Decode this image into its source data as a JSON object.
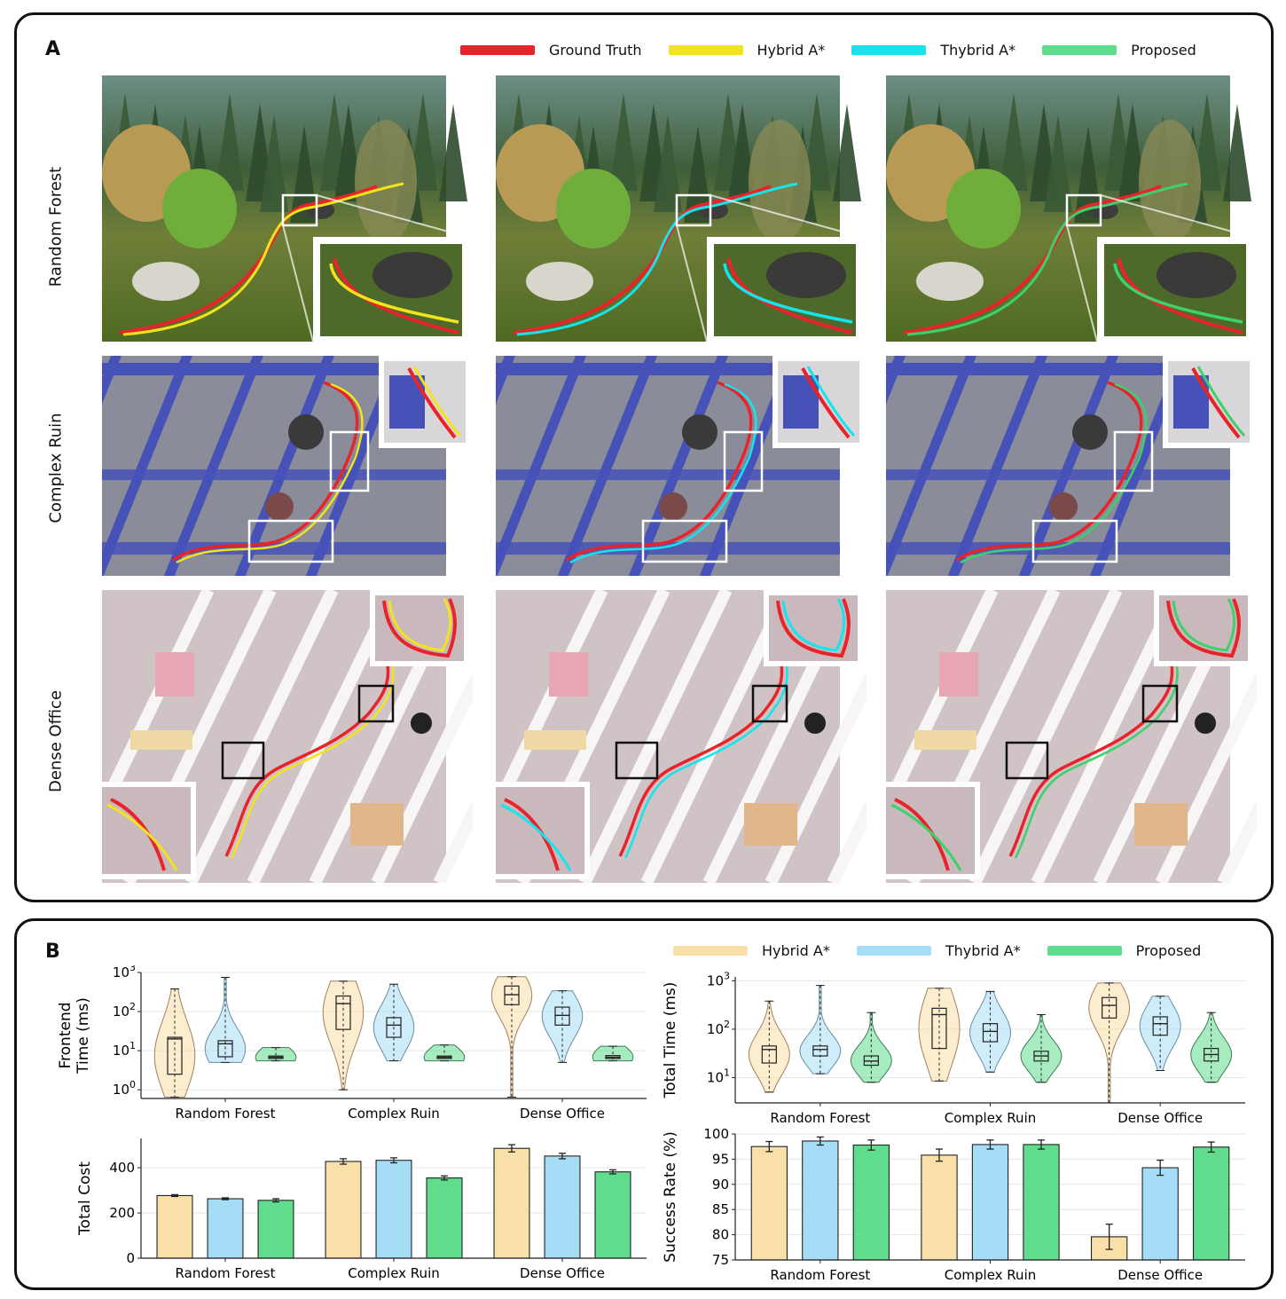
{
  "panel_a": {
    "label": "A",
    "legend": [
      {
        "label": "Ground Truth",
        "color": "#e8232a"
      },
      {
        "label": "Hybrid A*",
        "color": "#f2e41c"
      },
      {
        "label": "Thybrid A*",
        "color": "#16e4ec"
      },
      {
        "label": "Proposed",
        "color": "#5fdc8c"
      }
    ],
    "rows": [
      "Random Forest",
      "Complex Ruin",
      "Dense Office"
    ],
    "method_colors": [
      "#f2e41c",
      "#16e4ec",
      "#3cd16a"
    ]
  },
  "panel_b": {
    "label": "B",
    "legend": [
      {
        "label": "Hybrid A*",
        "color": "#f9dfa8"
      },
      {
        "label": "Thybrid A*",
        "color": "#a6ddf6"
      },
      {
        "label": "Proposed",
        "color": "#5fdc8c"
      }
    ]
  },
  "chart_data": [
    {
      "type": "violin",
      "ylabel": "Frontend\nTime (ms)",
      "yscale": "log",
      "ylim": [
        0.6,
        1000
      ],
      "yticks": [
        "10^0",
        "10^1",
        "10^2",
        "10^3"
      ],
      "categories": [
        "Random Forest",
        "Complex Ruin",
        "Dense Office"
      ],
      "series": [
        {
          "name": "Hybrid A*",
          "color": "#f9dfa8",
          "stroke": "#a08060",
          "stats": [
            {
              "min": 0.65,
              "q1": 2.5,
              "median": 20,
              "q3": 22,
              "max": 380
            },
            {
              "min": 1.0,
              "q1": 35,
              "median": 160,
              "q3": 250,
              "max": 600
            },
            {
              "min": 0.65,
              "q1": 150,
              "median": 270,
              "q3": 450,
              "max": 780
            }
          ]
        },
        {
          "name": "Thybrid A*",
          "color": "#a6ddf6",
          "stroke": "#6a8ea0",
          "stats": [
            {
              "min": 5,
              "q1": 7,
              "median": 15,
              "q3": 18,
              "max": 750
            },
            {
              "min": 5.5,
              "q1": 22,
              "median": 45,
              "q3": 70,
              "max": 500
            },
            {
              "min": 5,
              "q1": 45,
              "median": 80,
              "q3": 130,
              "max": 340
            }
          ]
        },
        {
          "name": "Proposed",
          "color": "#5fdc8c",
          "stroke": "#3f7a55",
          "stats": [
            {
              "min": 5.5,
              "q1": 6.3,
              "median": 6.8,
              "q3": 7.3,
              "max": 12
            },
            {
              "min": 5.5,
              "q1": 6.3,
              "median": 6.8,
              "q3": 7.3,
              "max": 14
            },
            {
              "min": 5.5,
              "q1": 6.3,
              "median": 6.8,
              "q3": 7.5,
              "max": 13
            }
          ]
        }
      ]
    },
    {
      "type": "violin",
      "ylabel": "Total Time (ms)",
      "yscale": "log",
      "ylim": [
        3,
        1200
      ],
      "yticks": [
        "10^1",
        "10^2",
        "10^3"
      ],
      "categories": [
        "Random Forest",
        "Complex Ruin",
        "Dense Office"
      ],
      "series": [
        {
          "name": "Hybrid A*",
          "color": "#f9dfa8",
          "stroke": "#a08060",
          "stats": [
            {
              "min": 5,
              "q1": 20,
              "median": 38,
              "q3": 45,
              "max": 380
            },
            {
              "min": 8.5,
              "q1": 40,
              "median": 200,
              "q3": 270,
              "max": 700
            },
            {
              "min": 3,
              "q1": 170,
              "median": 310,
              "q3": 450,
              "max": 900
            }
          ]
        },
        {
          "name": "Thybrid A*",
          "color": "#a6ddf6",
          "stroke": "#6a8ea0",
          "stats": [
            {
              "min": 12,
              "q1": 28,
              "median": 38,
              "q3": 45,
              "max": 800
            },
            {
              "min": 13,
              "q1": 55,
              "median": 90,
              "q3": 130,
              "max": 600
            },
            {
              "min": 14,
              "q1": 75,
              "median": 130,
              "q3": 180,
              "max": 480
            }
          ]
        },
        {
          "name": "Proposed",
          "color": "#5fdc8c",
          "stroke": "#3f7a55",
          "stats": [
            {
              "min": 8,
              "q1": 18,
              "median": 22,
              "q3": 28,
              "max": 220
            },
            {
              "min": 8,
              "q1": 22,
              "median": 28,
              "q3": 35,
              "max": 200
            },
            {
              "min": 8,
              "q1": 22,
              "median": 30,
              "q3": 40,
              "max": 220
            }
          ]
        }
      ]
    },
    {
      "type": "bar",
      "ylabel": "Total Cost",
      "ylim": [
        0,
        530
      ],
      "yticks": [
        0,
        200,
        400
      ],
      "categories": [
        "Random Forest",
        "Complex Ruin",
        "Dense Office"
      ],
      "series": [
        {
          "name": "Hybrid A*",
          "color": "#f9dfa8",
          "values": [
            277,
            428,
            486
          ],
          "errors": [
            4,
            12,
            16
          ]
        },
        {
          "name": "Thybrid A*",
          "color": "#a6ddf6",
          "values": [
            263,
            433,
            452
          ],
          "errors": [
            4,
            11,
            12
          ]
        },
        {
          "name": "Proposed",
          "color": "#5fdc8c",
          "values": [
            256,
            355,
            382
          ],
          "errors": [
            7,
            9,
            9
          ]
        }
      ]
    },
    {
      "type": "bar",
      "ylabel": "Success Rate (%)",
      "ylim": [
        75,
        100
      ],
      "yticks": [
        75,
        80,
        85,
        90,
        95,
        100
      ],
      "categories": [
        "Random Forest",
        "Complex Ruin",
        "Dense Office"
      ],
      "series": [
        {
          "name": "Hybrid A*",
          "color": "#f9dfa8",
          "values": [
            97.5,
            95.8,
            79.6
          ],
          "errors": [
            1.0,
            1.2,
            2.5
          ]
        },
        {
          "name": "Thybrid A*",
          "color": "#a6ddf6",
          "values": [
            98.6,
            97.9,
            93.3
          ],
          "errors": [
            0.8,
            0.9,
            1.5
          ]
        },
        {
          "name": "Proposed",
          "color": "#5fdc8c",
          "values": [
            97.8,
            97.9,
            97.4
          ],
          "errors": [
            1.0,
            0.9,
            1.0
          ]
        }
      ]
    }
  ]
}
